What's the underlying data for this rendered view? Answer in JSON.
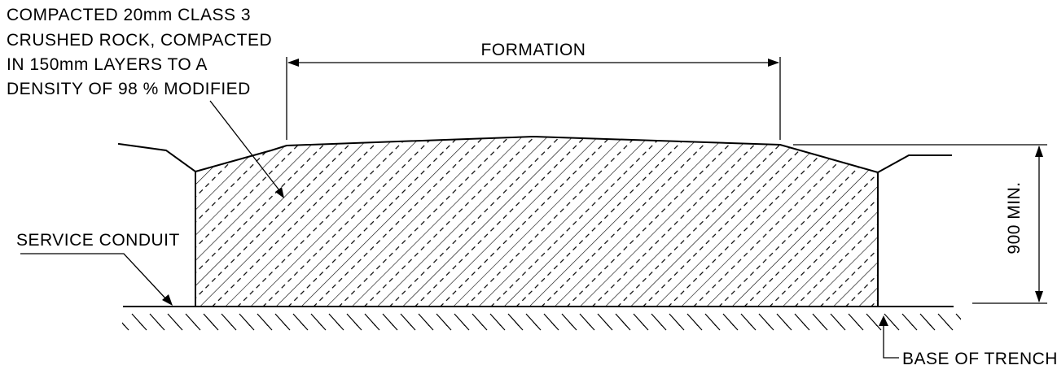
{
  "colors": {
    "ink": "#000000",
    "background": "#ffffff"
  },
  "notes": {
    "fill_material": [
      "COMPACTED 20mm CLASS 3",
      "CRUSHED ROCK, COMPACTED",
      "IN 150mm LAYERS TO A",
      "DENSITY OF 98 % MODIFIED"
    ],
    "formation": "FORMATION",
    "service_conduit": "SERVICE CONDUIT",
    "depth": "900 MIN.",
    "base_of_trench": "BASE OF TRENCH"
  }
}
